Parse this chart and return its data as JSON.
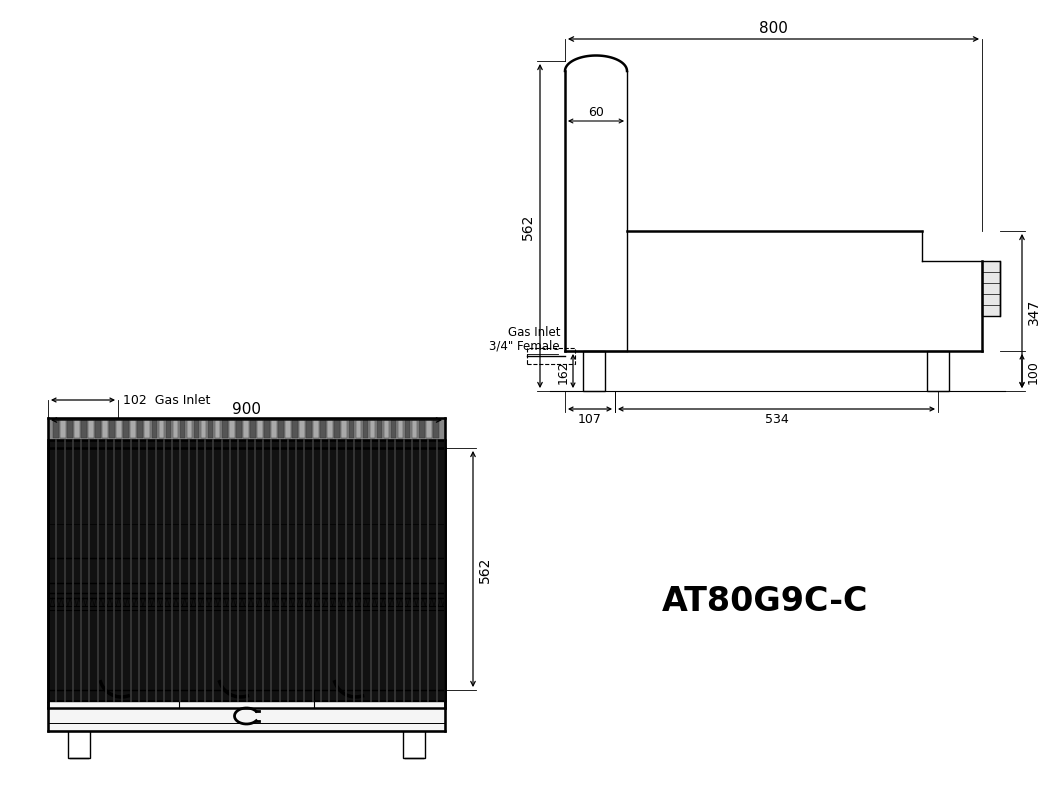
{
  "title": "AT80G9C-C",
  "title_fontsize": 24,
  "bg_color": "#ffffff",
  "line_color": "#000000",
  "front_view": {
    "width_dim": "900",
    "height_dim": "562"
  },
  "side_view": {
    "width_dim": "800",
    "dim_60": "60",
    "dim_162": "162",
    "dim_347": "347",
    "dim_100": "100",
    "dim_107": "107",
    "dim_534": "534",
    "dim_562": "562",
    "gas_label": "Gas Inlet",
    "gas_label2": "3/4\" Female"
  },
  "top_view": {
    "dim_102": "102",
    "gas_label": "Gas Inlet"
  }
}
